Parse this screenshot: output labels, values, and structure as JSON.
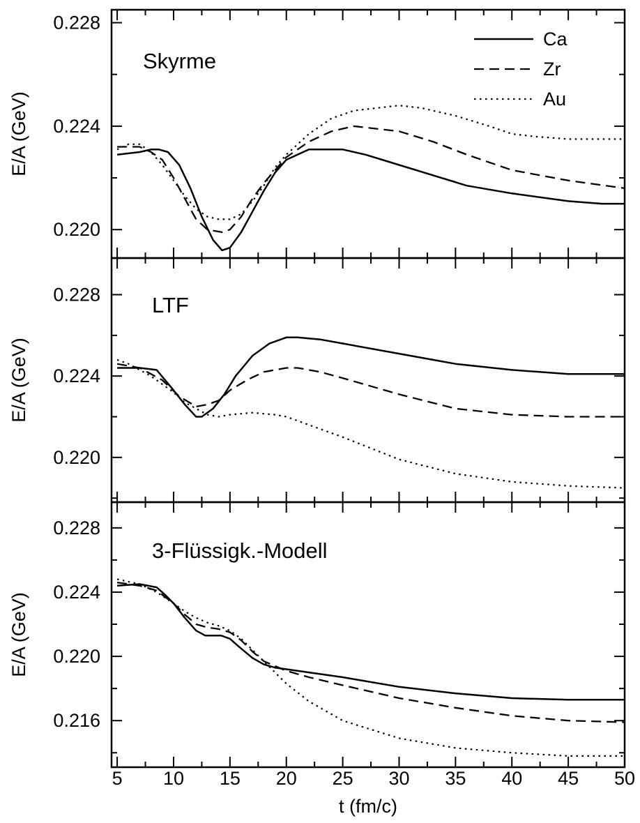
{
  "chart_data": {
    "type": "line",
    "xlabel": "t (fm/c)",
    "xlim": [
      4.5,
      50
    ],
    "xticks": [
      5,
      10,
      15,
      20,
      25,
      30,
      35,
      40,
      45,
      50
    ],
    "legend": {
      "placement": "top-right",
      "entries": [
        {
          "name": "Ca",
          "style": "solid"
        },
        {
          "name": "Zr",
          "style": "dashed"
        },
        {
          "name": "Au",
          "style": "dotted"
        }
      ]
    },
    "panels": [
      {
        "label": "Skyrme",
        "ylabel": "E/A (GeV)",
        "ylim": [
          0.2189,
          0.2285
        ],
        "yticks": [
          0.22,
          0.224,
          0.228
        ],
        "series": [
          {
            "name": "Ca",
            "style": "solid",
            "x": [
              5,
              7,
              8,
              8.7,
              9.5,
              10.5,
              11.5,
              12.5,
              13.5,
              14.3,
              15,
              16,
              17,
              18,
              19,
              20,
              22,
              24,
              25,
              27,
              30,
              33,
              36,
              40,
              45,
              48,
              50
            ],
            "y": [
              0.2229,
              0.223,
              0.2231,
              0.2231,
              0.223,
              0.2225,
              0.2216,
              0.2205,
              0.2196,
              0.2192,
              0.2193,
              0.2199,
              0.2207,
              0.2215,
              0.2222,
              0.2227,
              0.2231,
              0.2231,
              0.2231,
              0.2229,
              0.2225,
              0.2221,
              0.2217,
              0.2214,
              0.2211,
              0.221,
              0.221
            ]
          },
          {
            "name": "Zr",
            "style": "dashed",
            "x": [
              5,
              6,
              7,
              8,
              9,
              10,
              11,
              12,
              13,
              14.3,
              15,
              16,
              17,
              18,
              20,
              22,
              24,
              26,
              28,
              30,
              33,
              36,
              40,
              45,
              50
            ],
            "y": [
              0.2232,
              0.2232,
              0.2232,
              0.223,
              0.2227,
              0.222,
              0.2212,
              0.2204,
              0.22,
              0.2199,
              0.22,
              0.2205,
              0.2212,
              0.2218,
              0.2228,
              0.2234,
              0.2238,
              0.224,
              0.2239,
              0.2238,
              0.2234,
              0.2229,
              0.2223,
              0.2219,
              0.2216
            ]
          },
          {
            "name": "Au",
            "style": "dotted",
            "x": [
              5,
              6,
              7,
              8,
              9,
              10,
              11,
              12,
              13,
              14,
              15,
              16,
              17,
              18,
              19,
              20,
              22,
              24,
              26,
              28,
              30,
              32,
              35,
              38,
              40,
              42,
              45,
              48,
              50
            ],
            "y": [
              0.2231,
              0.2233,
              0.2233,
              0.223,
              0.2225,
              0.2219,
              0.2213,
              0.2208,
              0.2205,
              0.2204,
              0.2204,
              0.2206,
              0.2211,
              0.2217,
              0.2224,
              0.2229,
              0.2237,
              0.2243,
              0.2246,
              0.2247,
              0.2248,
              0.2247,
              0.2244,
              0.224,
              0.2237,
              0.2236,
              0.2235,
              0.2235,
              0.2235
            ]
          }
        ]
      },
      {
        "label": "LTF",
        "ylabel": "E/A (GeV)",
        "ylim": [
          0.2178,
          0.2298
        ],
        "yticks": [
          0.22,
          0.224,
          0.228
        ],
        "series": [
          {
            "name": "Ca",
            "style": "solid",
            "x": [
              5,
              7,
              8.5,
              10,
              11,
              12,
              12.5,
              13.5,
              14.5,
              15.5,
              17,
              18.5,
              20,
              21,
              23,
              25,
              30,
              35,
              40,
              45,
              50
            ],
            "y": [
              0.2244,
              0.2244,
              0.2243,
              0.2233,
              0.2226,
              0.222,
              0.222,
              0.2224,
              0.2231,
              0.224,
              0.225,
              0.2256,
              0.2259,
              0.2259,
              0.2258,
              0.2256,
              0.2251,
              0.2246,
              0.2243,
              0.2241,
              0.2241
            ]
          },
          {
            "name": "Zr",
            "style": "dashed",
            "x": [
              5,
              7,
              9,
              10.5,
              12,
              13,
              14,
              15,
              16.5,
              18,
              20,
              21,
              23,
              25,
              30,
              35,
              40,
              45,
              50
            ],
            "y": [
              0.2246,
              0.2244,
              0.2238,
              0.223,
              0.2225,
              0.2226,
              0.2228,
              0.2233,
              0.2238,
              0.2242,
              0.2244,
              0.2244,
              0.2242,
              0.2239,
              0.2231,
              0.2224,
              0.2221,
              0.222,
              0.222
            ]
          },
          {
            "name": "Au",
            "style": "dotted",
            "x": [
              5,
              6,
              8,
              10,
              11,
              12,
              13,
              14,
              15,
              17,
              19,
              20,
              21,
              22,
              25,
              30,
              35,
              40,
              45,
              50
            ],
            "y": [
              0.2248,
              0.2246,
              0.224,
              0.2232,
              0.2227,
              0.2224,
              0.2221,
              0.222,
              0.2221,
              0.2222,
              0.2221,
              0.222,
              0.2218,
              0.2216,
              0.221,
              0.2199,
              0.2192,
              0.2188,
              0.2186,
              0.2185
            ]
          }
        ]
      },
      {
        "label": "3-Flüssigk.-Modell",
        "ylabel": "E/A (GeV)",
        "ylim": [
          0.2131,
          0.2296
        ],
        "yticks": [
          0.216,
          0.22,
          0.224,
          0.228
        ],
        "series": [
          {
            "name": "Ca",
            "style": "solid",
            "x": [
              5,
              7,
              8.5,
              9.3,
              10,
              11,
              12,
              12.8,
              13.5,
              14.2,
              15,
              15.8,
              17,
              18,
              19,
              20,
              22,
              25,
              30,
              35,
              40,
              45,
              50
            ],
            "y": [
              0.2244,
              0.2245,
              0.2243,
              0.2238,
              0.2233,
              0.2224,
              0.2216,
              0.2213,
              0.2213,
              0.2213,
              0.2211,
              0.2206,
              0.2199,
              0.2195,
              0.2193,
              0.2192,
              0.219,
              0.2187,
              0.2181,
              0.2177,
              0.2174,
              0.2173,
              0.2173
            ]
          },
          {
            "name": "Zr",
            "style": "dashed",
            "x": [
              5,
              7,
              8.5,
              10,
              11,
              12,
              13,
              14,
              15,
              16,
              17,
              18,
              19,
              20,
              22,
              25,
              30,
              35,
              40,
              45,
              50
            ],
            "y": [
              0.2246,
              0.2244,
              0.2241,
              0.2233,
              0.2226,
              0.222,
              0.2218,
              0.2217,
              0.2215,
              0.221,
              0.2203,
              0.2197,
              0.2194,
              0.2191,
              0.2187,
              0.2182,
              0.2174,
              0.2168,
              0.2163,
              0.216,
              0.2159
            ]
          },
          {
            "name": "Au",
            "style": "dotted",
            "x": [
              5,
              7,
              8.5,
              10,
              11,
              12,
              13,
              14,
              15,
              16,
              17,
              18,
              19,
              20,
              22,
              25,
              30,
              35,
              40,
              45,
              50
            ],
            "y": [
              0.2248,
              0.2245,
              0.224,
              0.2233,
              0.2228,
              0.2224,
              0.2221,
              0.2219,
              0.2216,
              0.2211,
              0.2204,
              0.2197,
              0.219,
              0.2183,
              0.2172,
              0.216,
              0.2149,
              0.2143,
              0.214,
              0.2138,
              0.2138
            ]
          }
        ]
      }
    ]
  }
}
